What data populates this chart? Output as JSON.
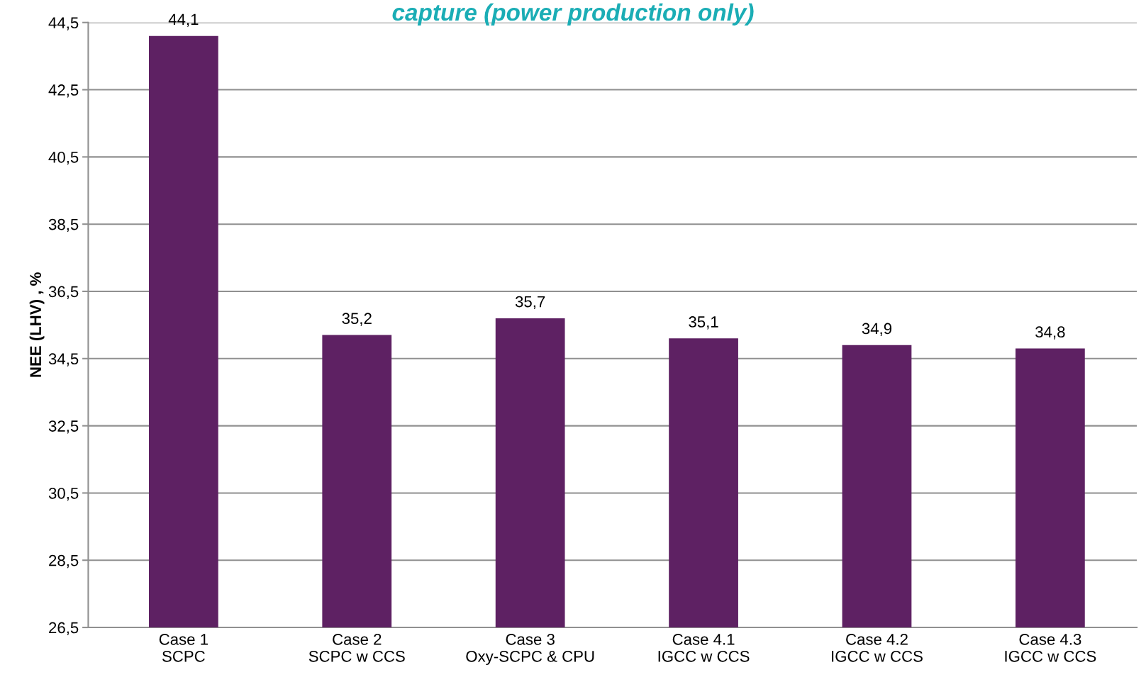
{
  "chart_data": {
    "type": "bar",
    "title": "capture (power production only)",
    "ylabel": "NEE (LHV) , %",
    "categories": [
      "Case 1\nSCPC",
      "Case 2\nSCPC w CCS",
      "Case 3\nOxy-SCPC & CPU",
      "Case 4.1\nIGCC w CCS",
      "Case 4.2\nIGCC w CCS",
      "Case 4.3\nIGCC w CCS"
    ],
    "values": [
      44.1,
      35.2,
      35.7,
      35.1,
      34.9,
      34.8
    ],
    "value_labels": [
      "44,1",
      "35,2",
      "35,7",
      "35,1",
      "34,9",
      "34,8"
    ],
    "color": "#5e2163",
    "ylim": [
      26.5,
      44.5
    ],
    "yticks": [
      {
        "value": 26.5,
        "label": "26,5"
      },
      {
        "value": 28.5,
        "label": "28,5"
      },
      {
        "value": 30.5,
        "label": "30,5"
      },
      {
        "value": 32.5,
        "label": "32,5"
      },
      {
        "value": 34.5,
        "label": "34,5"
      },
      {
        "value": 36.5,
        "label": "36,5"
      },
      {
        "value": 38.5,
        "label": "38,5"
      },
      {
        "value": 40.5,
        "label": "40,5"
      },
      {
        "value": 42.5,
        "label": "42,5"
      },
      {
        "value": 44.5,
        "label": "44,5"
      }
    ],
    "grid": "y",
    "legend": false
  }
}
